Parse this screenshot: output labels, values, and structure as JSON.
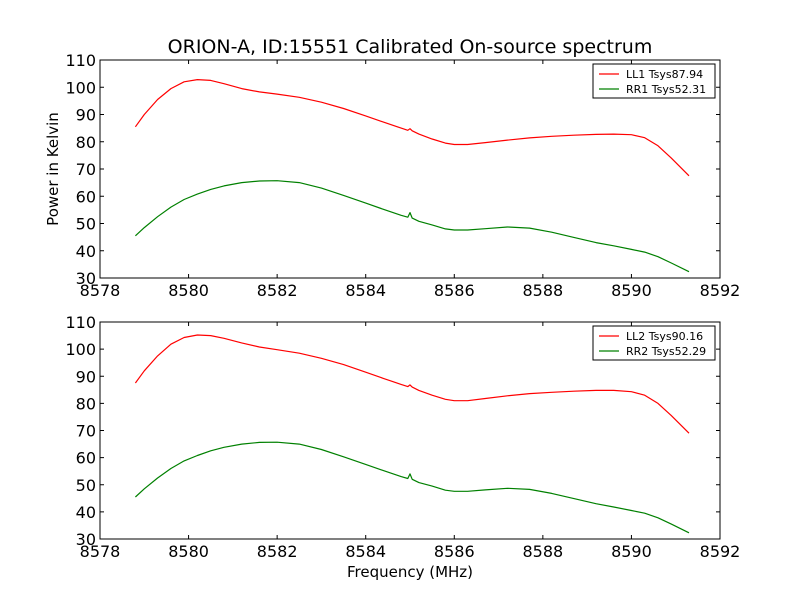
{
  "chart_data": [
    {
      "type": "line",
      "title": "ORION-A, ID:15551 Calibrated On-source spectrum",
      "xlabel": "",
      "ylabel": "Power in Kelvin",
      "xlim": [
        8578,
        8592
      ],
      "ylim": [
        30,
        110
      ],
      "xticks": [
        8578,
        8580,
        8582,
        8584,
        8586,
        8588,
        8590,
        8592
      ],
      "yticks": [
        30,
        40,
        50,
        60,
        70,
        80,
        90,
        100,
        110
      ],
      "legend": "top-right",
      "grid": false,
      "series": [
        {
          "name": "LL1 Tsys87.94",
          "color": "#ff0000",
          "x": [
            8578.8,
            8579.0,
            8579.3,
            8579.6,
            8579.9,
            8580.2,
            8580.5,
            8580.8,
            8581.2,
            8581.6,
            8582.0,
            8582.5,
            8583.0,
            8583.5,
            8584.0,
            8584.4,
            8584.8,
            8584.95,
            8585.0,
            8585.05,
            8585.2,
            8585.5,
            8585.8,
            8586.0,
            8586.3,
            8586.7,
            8587.2,
            8587.7,
            8588.2,
            8588.7,
            8589.2,
            8589.6,
            8590.0,
            8590.3,
            8590.6,
            8590.9,
            8591.3
          ],
          "y": [
            85.5,
            90,
            95.5,
            99.5,
            102,
            102.8,
            102.5,
            101.3,
            99.5,
            98.3,
            97.5,
            96.3,
            94.5,
            92.2,
            89.5,
            87.2,
            85,
            84.2,
            84.8,
            84,
            82.8,
            81,
            79.5,
            79,
            79,
            79.7,
            80.6,
            81.4,
            82,
            82.4,
            82.7,
            82.8,
            82.6,
            81.5,
            78.5,
            74,
            67.5
          ]
        },
        {
          "name": "RR1 Tsys52.31",
          "color": "#008000",
          "x": [
            8578.8,
            8579.0,
            8579.3,
            8579.6,
            8579.9,
            8580.2,
            8580.5,
            8580.8,
            8581.2,
            8581.6,
            8582.0,
            8582.5,
            8583.0,
            8583.5,
            8584.0,
            8584.4,
            8584.8,
            8584.95,
            8585.0,
            8585.05,
            8585.2,
            8585.5,
            8585.8,
            8586.0,
            8586.3,
            8586.7,
            8587.2,
            8587.7,
            8588.2,
            8588.7,
            8589.2,
            8589.6,
            8590.0,
            8590.3,
            8590.6,
            8590.9,
            8591.3
          ],
          "y": [
            45.5,
            48.5,
            52.5,
            56,
            58.8,
            60.8,
            62.5,
            63.8,
            65,
            65.6,
            65.7,
            65,
            63,
            60.3,
            57.5,
            55.2,
            53,
            52.3,
            54,
            52,
            50.8,
            49.5,
            48,
            47.6,
            47.6,
            48.1,
            48.7,
            48.3,
            46.8,
            44.9,
            43,
            41.8,
            40.5,
            39.5,
            37.8,
            35.5,
            32.3
          ]
        }
      ]
    },
    {
      "type": "line",
      "title": "",
      "xlabel": "Frequency (MHz)",
      "ylabel": "",
      "xlim": [
        8578,
        8592
      ],
      "ylim": [
        30,
        110
      ],
      "xticks": [
        8578,
        8580,
        8582,
        8584,
        8586,
        8588,
        8590,
        8592
      ],
      "yticks": [
        30,
        40,
        50,
        60,
        70,
        80,
        90,
        100,
        110
      ],
      "legend": "top-right",
      "grid": false,
      "series": [
        {
          "name": "LL2 Tsys90.16",
          "color": "#ff0000",
          "x": [
            8578.8,
            8579.0,
            8579.3,
            8579.6,
            8579.9,
            8580.2,
            8580.5,
            8580.8,
            8581.2,
            8581.6,
            8582.0,
            8582.5,
            8583.0,
            8583.5,
            8584.0,
            8584.4,
            8584.8,
            8584.95,
            8585.0,
            8585.05,
            8585.2,
            8585.5,
            8585.8,
            8586.0,
            8586.3,
            8586.7,
            8587.2,
            8587.7,
            8588.2,
            8588.7,
            8589.2,
            8589.6,
            8590.0,
            8590.3,
            8590.6,
            8590.9,
            8591.3
          ],
          "y": [
            87.5,
            92,
            97.5,
            101.8,
            104.3,
            105.2,
            105,
            104,
            102.3,
            100.8,
            99.8,
            98.5,
            96.6,
            94.3,
            91.5,
            89.2,
            87,
            86.2,
            86.8,
            86,
            84.8,
            83,
            81.5,
            81,
            81,
            81.8,
            82.8,
            83.6,
            84.1,
            84.5,
            84.8,
            84.8,
            84.3,
            83,
            80,
            75.5,
            69
          ]
        },
        {
          "name": "RR2 Tsys52.29",
          "color": "#008000",
          "x": [
            8578.8,
            8579.0,
            8579.3,
            8579.6,
            8579.9,
            8580.2,
            8580.5,
            8580.8,
            8581.2,
            8581.6,
            8582.0,
            8582.5,
            8583.0,
            8583.5,
            8584.0,
            8584.4,
            8584.8,
            8584.95,
            8585.0,
            8585.05,
            8585.2,
            8585.5,
            8585.8,
            8586.0,
            8586.3,
            8586.7,
            8587.2,
            8587.7,
            8588.2,
            8588.7,
            8589.2,
            8589.6,
            8590.0,
            8590.3,
            8590.6,
            8590.9,
            8591.3
          ],
          "y": [
            45.5,
            48.5,
            52.5,
            56,
            58.8,
            60.8,
            62.5,
            63.8,
            65,
            65.6,
            65.7,
            65,
            63,
            60.3,
            57.5,
            55.2,
            53,
            52.3,
            54,
            52,
            50.8,
            49.5,
            48,
            47.6,
            47.6,
            48.1,
            48.7,
            48.3,
            46.8,
            44.9,
            43,
            41.8,
            40.5,
            39.5,
            37.8,
            35.5,
            32.3
          ]
        }
      ]
    }
  ]
}
